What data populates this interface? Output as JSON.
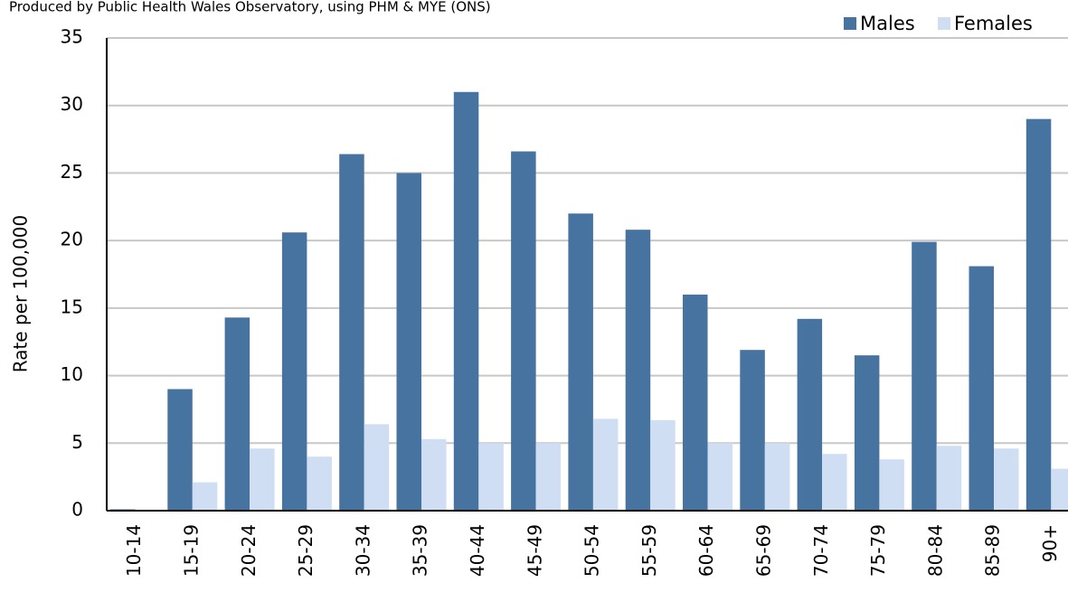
{
  "chart_data": {
    "type": "bar",
    "subtitle": "Produced by Public Health Wales Observatory, using PHM & MYE (ONS)",
    "y_label": "Rate per 100,000",
    "categories": [
      "10-14",
      "15-19",
      "20-24",
      "25-29",
      "30-34",
      "35-39",
      "40-44",
      "45-49",
      "50-54",
      "55-59",
      "60-64",
      "65-69",
      "70-74",
      "75-79",
      "80-84",
      "85-89",
      "90+"
    ],
    "series": [
      {
        "name": "Males",
        "color": "#46739f",
        "values": [
          0.1,
          9.0,
          14.3,
          20.6,
          26.4,
          25.0,
          31.0,
          26.6,
          22.0,
          20.8,
          16.0,
          11.9,
          14.2,
          11.5,
          19.9,
          18.1,
          29.0
        ]
      },
      {
        "name": "Females",
        "color": "#cfdef2",
        "values": [
          0,
          2.1,
          4.6,
          4.0,
          6.4,
          5.3,
          5.0,
          5.0,
          6.8,
          6.7,
          5.0,
          5.0,
          4.2,
          3.8,
          4.8,
          4.6,
          3.1
        ]
      }
    ],
    "ylim": [
      0,
      35
    ],
    "yticks": [
      0,
      5,
      10,
      15,
      20,
      25,
      30,
      35
    ],
    "grid": true,
    "legend": "top-right"
  }
}
